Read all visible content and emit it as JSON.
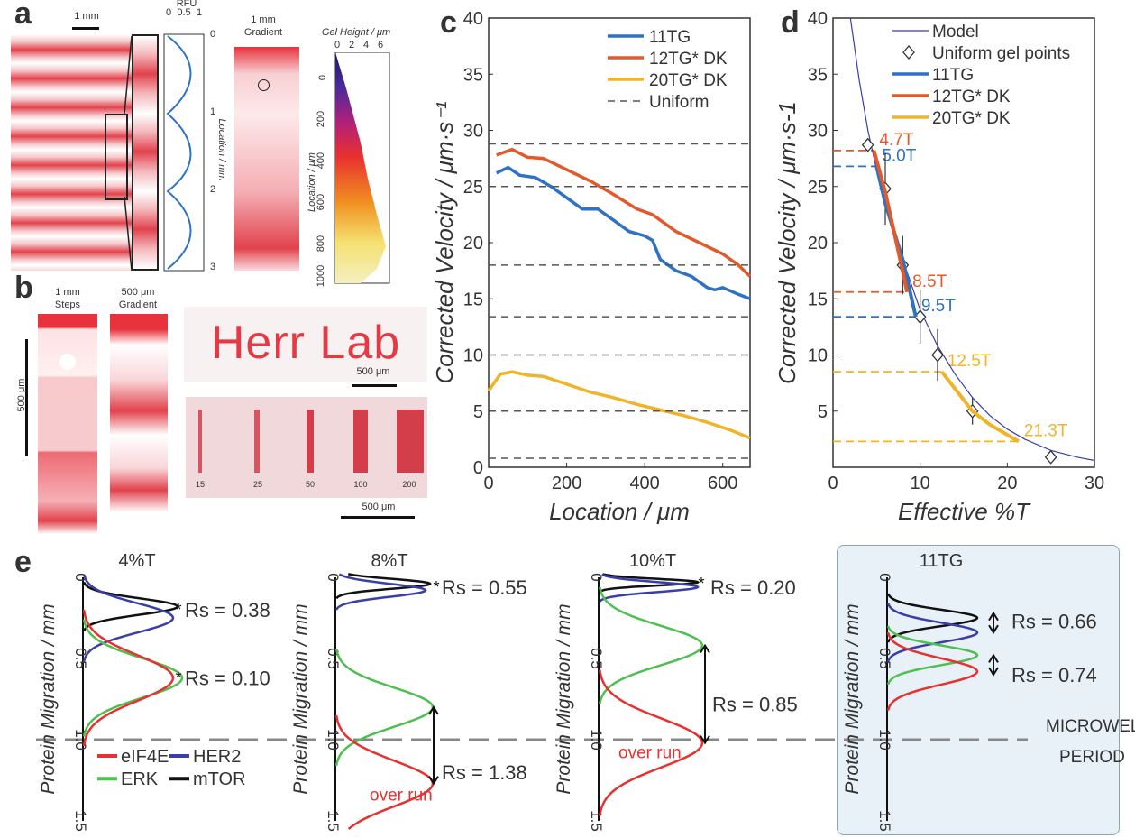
{
  "panels": {
    "a": "a",
    "b": "b",
    "c": "c",
    "d": "d",
    "e": "e"
  },
  "panel_a": {
    "scalebar": "1 mm",
    "rfu_label": "RFU",
    "rfu_ticks": [
      "0",
      "0.5",
      "1"
    ],
    "location_label": "Location / mm",
    "location_ticks": [
      "0",
      "1",
      "2",
      "3"
    ],
    "gradient_title_1": "1 mm",
    "gradient_title_2": "Gradient",
    "gel_height_label": "Gel Height / μm",
    "gel_height_ticks": [
      "0",
      "2",
      "4",
      "6"
    ],
    "gel_location_label": "Location / μm",
    "gel_location_ticks": [
      "0",
      "200",
      "400",
      "600",
      "800",
      "1000"
    ]
  },
  "panel_b": {
    "steps_1": "1 mm",
    "steps_2": "Steps",
    "grad_1": "500 μm",
    "grad_2": "Gradient",
    "scale_vertical": "500 μm",
    "logo_text": "Herr Lab",
    "scale_logo": "500 μm",
    "scale_bottom": "500 μm",
    "well_labels": [
      "15",
      "25",
      "50",
      "100",
      "200"
    ]
  },
  "chart_c": {
    "ylabel": "Corrected Velocity / μm·s⁻¹",
    "xlabel": "Location  / μm",
    "legend": [
      "11TG",
      "12TG* DK",
      "20TG* DK",
      "Uniform"
    ]
  },
  "chart_d": {
    "ylabel": "Corrected Velocity / μm·s-1",
    "xlabel": "Effective %T",
    "legend": [
      "Model",
      "Uniform gel points",
      "11TG",
      "12TG* DK",
      "20TG* DK"
    ],
    "annotations": [
      "4.7T",
      "5.0T",
      "8.5T",
      "9.5T",
      "12.5T",
      "21.3T"
    ]
  },
  "panel_e": {
    "ylabel": "Protein Migration / mm",
    "titles": [
      "4%T",
      "8%T",
      "10%T",
      "11TG"
    ],
    "rs_labels": [
      "Rs =  0.38",
      "Rs = 0.10",
      "Rs = 0.55",
      "Rs = 1.38",
      "Rs = 0.20",
      "Rs = 0.85",
      "Rs =  0.66",
      "Rs = 0.74"
    ],
    "over_run": "over run",
    "microwell_1": "MICROWELL",
    "microwell_2": "PERIOD",
    "legend": [
      "eIF4E",
      "HER2",
      "ERK",
      "mTOR"
    ],
    "ticks": [
      "0",
      "0.5",
      "1.0",
      "1.5"
    ]
  },
  "colors": {
    "red": "#e8312f",
    "blue": "#2f72c4",
    "orange": "#e05a2b",
    "yellow": "#f0b429",
    "green": "#4fbf4f",
    "black": "#111111",
    "navy": "#3a3fa8",
    "box": "#e9f1f8"
  },
  "chart_data": [
    {
      "type": "line",
      "title": "",
      "xlabel": "Location  / μm",
      "ylabel": "Corrected Velocity / μm·s⁻¹",
      "xlim": [
        0,
        670
      ],
      "ylim": [
        0,
        40
      ],
      "x_ticks": [
        0,
        200,
        400,
        600
      ],
      "y_ticks": [
        0,
        5,
        10,
        15,
        20,
        25,
        30,
        35,
        40
      ],
      "series": [
        {
          "name": "11TG",
          "x": [
            20,
            50,
            80,
            120,
            160,
            200,
            240,
            280,
            320,
            360,
            400,
            420,
            440,
            480,
            520,
            560,
            580,
            600,
            640,
            670
          ],
          "y": [
            26.2,
            26.7,
            26,
            25.8,
            25,
            24,
            23,
            23,
            22,
            21,
            20.6,
            20.2,
            18.5,
            17.5,
            17,
            16,
            15.8,
            16,
            15.4,
            15
          ]
        },
        {
          "name": "12TG* DK",
          "x": [
            20,
            60,
            100,
            140,
            200,
            260,
            320,
            380,
            420,
            480,
            540,
            600,
            640,
            670
          ],
          "y": [
            27.8,
            28.3,
            27.6,
            27.5,
            26.5,
            25.5,
            24.3,
            23,
            22.5,
            21,
            20,
            19,
            18,
            17
          ]
        },
        {
          "name": "20TG* DK",
          "x": [
            0,
            30,
            60,
            100,
            140,
            200,
            260,
            320,
            380,
            440,
            500,
            560,
            620,
            670
          ],
          "y": [
            6.8,
            8.3,
            8.5,
            8.2,
            8.1,
            7.4,
            6.7,
            6.2,
            5.6,
            5.1,
            4.6,
            4,
            3.3,
            2.6
          ]
        },
        {
          "name": "Uniform",
          "type": "hline",
          "y": [
            28.8,
            25,
            18,
            13.4,
            10,
            5,
            0.8
          ]
        }
      ]
    },
    {
      "type": "scatter",
      "title": "",
      "xlabel": "Effective %T",
      "ylabel": "Corrected Velocity / μm·s-1",
      "xlim": [
        0,
        30
      ],
      "ylim": [
        0,
        40
      ],
      "x_ticks": [
        0,
        10,
        20,
        30
      ],
      "y_ticks": [
        5,
        10,
        15,
        20,
        25,
        30,
        35,
        40
      ],
      "series": [
        {
          "name": "Model",
          "x": [
            2,
            3,
            4,
            5,
            6,
            8,
            10,
            12,
            14,
            16,
            18,
            20,
            22,
            25,
            28,
            30
          ],
          "y": [
            40,
            34.5,
            30,
            26.5,
            23.5,
            18.5,
            14,
            10.8,
            8.3,
            6.2,
            4.6,
            3.4,
            2.5,
            1.5,
            0.9,
            0.6
          ]
        },
        {
          "name": "Uniform gel points",
          "x": [
            4,
            6,
            8,
            10,
            12,
            16,
            25
          ],
          "y": [
            28.7,
            24.8,
            18,
            13.4,
            10,
            5,
            0.9
          ],
          "error": [
            0.3,
            3.2,
            2.6,
            2.4,
            2.3,
            1.2,
            0.5
          ]
        },
        {
          "name": "11TG",
          "x": [
            5,
            6,
            8,
            9.5
          ],
          "y": [
            26.8,
            23.5,
            18.5,
            13.4
          ]
        },
        {
          "name": "12TG* DK",
          "x": [
            4.7,
            6,
            7,
            8.5
          ],
          "y": [
            28.2,
            24.5,
            21,
            15.6
          ]
        },
        {
          "name": "20TG* DK",
          "x": [
            12.5,
            14,
            16,
            18,
            21.3
          ],
          "y": [
            8.5,
            7,
            5,
            3.8,
            2.3
          ]
        }
      ]
    }
  ]
}
